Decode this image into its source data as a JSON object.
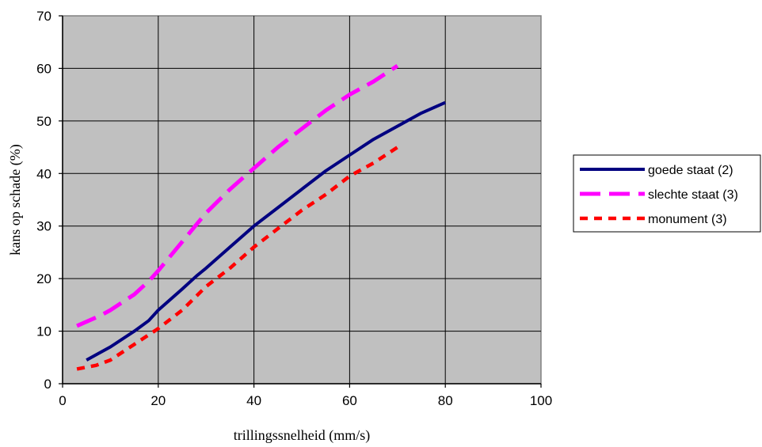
{
  "chart_data": {
    "type": "line",
    "title": "",
    "xlabel": "trillingssnelheid (mm/s)",
    "ylabel": "kans op schade (%)",
    "xlim": [
      0,
      100
    ],
    "ylim": [
      0,
      70
    ],
    "xticks": [
      0,
      20,
      40,
      60,
      80,
      100
    ],
    "yticks": [
      0,
      10,
      20,
      30,
      40,
      50,
      60,
      70
    ],
    "grid": true,
    "plot_background": "#c0c0c0",
    "legend_position": "right",
    "series": [
      {
        "name": "goede staat (2)",
        "color": "#000080",
        "style": "solid",
        "x": [
          5,
          8,
          10,
          15,
          18,
          20,
          25,
          28,
          30,
          35,
          40,
          45,
          50,
          55,
          60,
          65,
          70,
          75,
          80
        ],
        "y": [
          4.5,
          6,
          7,
          10,
          12,
          14,
          18,
          20.5,
          22,
          26,
          30,
          33.5,
          37,
          40.5,
          43.5,
          46.5,
          49,
          51.5,
          53.5
        ]
      },
      {
        "name": "slechte staat (3)",
        "color": "#ff00ff",
        "style": "dashed",
        "x": [
          3,
          8,
          10,
          15,
          18,
          20,
          25,
          30,
          35,
          40,
          45,
          50,
          55,
          60,
          65,
          70
        ],
        "y": [
          11,
          13,
          14,
          17,
          19.5,
          21.5,
          27,
          32.5,
          37,
          41,
          45,
          48.5,
          52,
          55,
          57.5,
          60.5
        ]
      },
      {
        "name": "monument (3)",
        "color": "#ff0000",
        "style": "dotted",
        "x": [
          3,
          7,
          10,
          15,
          20,
          25,
          30,
          35,
          40,
          45,
          50,
          55,
          60,
          65,
          70
        ],
        "y": [
          2.8,
          3.5,
          4.5,
          7.5,
          10.5,
          14,
          18.5,
          22,
          26,
          29.5,
          33,
          36,
          39.5,
          42,
          45
        ]
      }
    ]
  }
}
